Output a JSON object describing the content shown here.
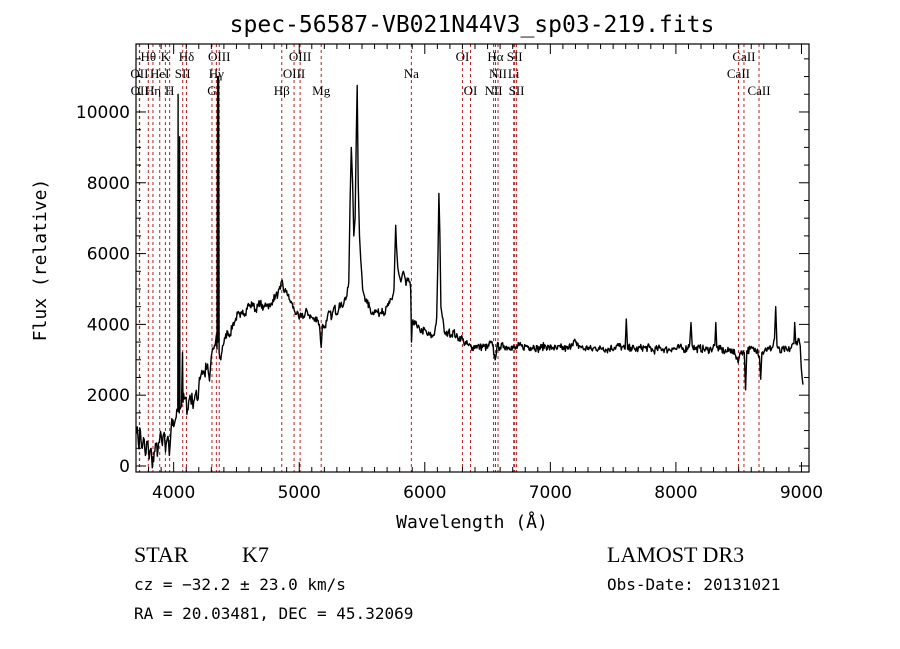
{
  "chart_data": {
    "type": "line",
    "title": "spec-56587-VB021N44V3_sp03-219.fits",
    "xlabel": "Wavelength (Å)",
    "ylabel": "Flux (relative)",
    "xlim": [
      3700,
      9060
    ],
    "ylim": [
      -170,
      11920
    ],
    "xticks": [
      4000,
      5000,
      6000,
      7000,
      8000,
      9000
    ],
    "yticks": [
      0,
      2000,
      4000,
      6000,
      8000,
      10000
    ],
    "xminor_step": 100,
    "yminor_step": 500,
    "line_color": "#000000",
    "marker_color": "#b22222",
    "spectral_lines": [
      {
        "label": "Hθ",
        "wavelength": 3798,
        "tier": 1
      },
      {
        "label": "K",
        "wavelength": 3934,
        "tier": 1
      },
      {
        "label": "Hδ",
        "wavelength": 4102,
        "tier": 1
      },
      {
        "label": "OIII",
        "wavelength": 4363,
        "tier": 1
      },
      {
        "label": "OIII",
        "wavelength": 5007,
        "tier": 1
      },
      {
        "label": "OI",
        "wavelength": 6300,
        "tier": 1
      },
      {
        "label": "Hα",
        "wavelength": 6563,
        "tier": 1
      },
      {
        "label": "SII",
        "wavelength": 6716,
        "tier": 1
      },
      {
        "label": "CaII",
        "wavelength": 8542,
        "tier": 1
      },
      {
        "label": "OII",
        "wavelength": 3727,
        "tier": 2
      },
      {
        "label": "HeI",
        "wavelength": 3889,
        "tier": 2
      },
      {
        "label": "SII",
        "wavelength": 4072,
        "tier": 2
      },
      {
        "label": "Hγ",
        "wavelength": 4340,
        "tier": 2
      },
      {
        "label": "OIII",
        "wavelength": 4959,
        "tier": 2
      },
      {
        "label": "Na",
        "wavelength": 5893,
        "tier": 2
      },
      {
        "label": "NII",
        "wavelength": 6583,
        "tier": 2
      },
      {
        "label": "Li",
        "wavelength": 6708,
        "tier": 2
      },
      {
        "label": "CaII",
        "wavelength": 8498,
        "tier": 2
      },
      {
        "label": "OII",
        "wavelength": 3729,
        "tier": 3
      },
      {
        "label": "Hη",
        "wavelength": 3835,
        "tier": 3
      },
      {
        "label": "H",
        "wavelength": 3968,
        "tier": 3
      },
      {
        "label": "G",
        "wavelength": 4305,
        "tier": 3
      },
      {
        "label": "Hβ",
        "wavelength": 4861,
        "tier": 3
      },
      {
        "label": "Mg",
        "wavelength": 5175,
        "tier": 3
      },
      {
        "label": "OI",
        "wavelength": 6364,
        "tier": 3
      },
      {
        "label": "NII",
        "wavelength": 6548,
        "tier": 3
      },
      {
        "label": "SII",
        "wavelength": 6731,
        "tier": 3
      },
      {
        "label": "CaII",
        "wavelength": 8662,
        "tier": 3
      }
    ],
    "series": [
      {
        "name": "spectrum",
        "points": [
          [
            3700,
            900
          ],
          [
            3710,
            1100
          ],
          [
            3720,
            600
          ],
          [
            3735,
            1000
          ],
          [
            3750,
            500
          ],
          [
            3760,
            800
          ],
          [
            3775,
            300
          ],
          [
            3790,
            700
          ],
          [
            3805,
            200
          ],
          [
            3820,
            500
          ],
          [
            3830,
            -50
          ],
          [
            3845,
            400
          ],
          [
            3860,
            600
          ],
          [
            3875,
            450
          ],
          [
            3890,
            800
          ],
          [
            3905,
            700
          ],
          [
            3920,
            900
          ],
          [
            3935,
            400
          ],
          [
            3950,
            800
          ],
          [
            3965,
            300
          ],
          [
            3980,
            1100
          ],
          [
            3995,
            1300
          ],
          [
            4010,
            1250
          ],
          [
            4025,
            1600
          ],
          [
            4033,
            1550
          ],
          [
            4035,
            10500
          ],
          [
            4037,
            1600
          ],
          [
            4045,
            1500
          ],
          [
            4047,
            9300
          ],
          [
            4050,
            1600
          ],
          [
            4062,
            1700
          ],
          [
            4070,
            3200
          ],
          [
            4074,
            1800
          ],
          [
            4090,
            1900
          ],
          [
            4110,
            1600
          ],
          [
            4130,
            2000
          ],
          [
            4150,
            1800
          ],
          [
            4170,
            2000
          ],
          [
            4190,
            1850
          ],
          [
            4205,
            2500
          ],
          [
            4225,
            2700
          ],
          [
            4245,
            2600
          ],
          [
            4265,
            2800
          ],
          [
            4285,
            2400
          ],
          [
            4300,
            3100
          ],
          [
            4315,
            3300
          ],
          [
            4330,
            3400
          ],
          [
            4340,
            3700
          ],
          [
            4345,
            3300
          ],
          [
            4350,
            11000
          ],
          [
            4353,
            3500
          ],
          [
            4358,
            11000
          ],
          [
            4362,
            3200
          ],
          [
            4375,
            3000
          ],
          [
            4390,
            3400
          ],
          [
            4410,
            3600
          ],
          [
            4430,
            3800
          ],
          [
            4450,
            3700
          ],
          [
            4470,
            4000
          ],
          [
            4490,
            4100
          ],
          [
            4510,
            4300
          ],
          [
            4530,
            4200
          ],
          [
            4550,
            4400
          ],
          [
            4570,
            4300
          ],
          [
            4590,
            4550
          ],
          [
            4610,
            4500
          ],
          [
            4630,
            4600
          ],
          [
            4650,
            4400
          ],
          [
            4670,
            4500
          ],
          [
            4690,
            4650
          ],
          [
            4710,
            4400
          ],
          [
            4730,
            4600
          ],
          [
            4750,
            4550
          ],
          [
            4770,
            4500
          ],
          [
            4790,
            4700
          ],
          [
            4810,
            4800
          ],
          [
            4830,
            4850
          ],
          [
            4850,
            5000
          ],
          [
            4865,
            5250
          ],
          [
            4880,
            4900
          ],
          [
            4900,
            4950
          ],
          [
            4920,
            4700
          ],
          [
            4940,
            4600
          ],
          [
            4960,
            4400
          ],
          [
            4980,
            4300
          ],
          [
            5000,
            4150
          ],
          [
            5020,
            4300
          ],
          [
            5040,
            4200
          ],
          [
            5060,
            4400
          ],
          [
            5080,
            4250
          ],
          [
            5100,
            4200
          ],
          [
            5120,
            4100
          ],
          [
            5140,
            4200
          ],
          [
            5160,
            4000
          ],
          [
            5175,
            3350
          ],
          [
            5185,
            4000
          ],
          [
            5200,
            3900
          ],
          [
            5220,
            4100
          ],
          [
            5240,
            4350
          ],
          [
            5260,
            4200
          ],
          [
            5280,
            4500
          ],
          [
            5300,
            4300
          ],
          [
            5320,
            4600
          ],
          [
            5340,
            4500
          ],
          [
            5360,
            4700
          ],
          [
            5380,
            4800
          ],
          [
            5395,
            5200
          ],
          [
            5405,
            7500
          ],
          [
            5415,
            9000
          ],
          [
            5425,
            8000
          ],
          [
            5435,
            6500
          ],
          [
            5445,
            7000
          ],
          [
            5455,
            9500
          ],
          [
            5462,
            10750
          ],
          [
            5470,
            8000
          ],
          [
            5480,
            6500
          ],
          [
            5490,
            5800
          ],
          [
            5505,
            5000
          ],
          [
            5520,
            4800
          ],
          [
            5540,
            4600
          ],
          [
            5560,
            4500
          ],
          [
            5580,
            4300
          ],
          [
            5600,
            4400
          ],
          [
            5620,
            4350
          ],
          [
            5640,
            4300
          ],
          [
            5660,
            4450
          ],
          [
            5680,
            4300
          ],
          [
            5700,
            4500
          ],
          [
            5720,
            4600
          ],
          [
            5740,
            4700
          ],
          [
            5755,
            5000
          ],
          [
            5768,
            6800
          ],
          [
            5775,
            6200
          ],
          [
            5785,
            5600
          ],
          [
            5795,
            5400
          ],
          [
            5810,
            5200
          ],
          [
            5830,
            5500
          ],
          [
            5850,
            5100
          ],
          [
            5870,
            5300
          ],
          [
            5888,
            5000
          ],
          [
            5894,
            3500
          ],
          [
            5900,
            4000
          ],
          [
            5920,
            4100
          ],
          [
            5940,
            3900
          ],
          [
            5960,
            3850
          ],
          [
            5980,
            3800
          ],
          [
            6000,
            3850
          ],
          [
            6020,
            3700
          ],
          [
            6040,
            3700
          ],
          [
            6060,
            3650
          ],
          [
            6080,
            3800
          ],
          [
            6095,
            4200
          ],
          [
            6105,
            6000
          ],
          [
            6112,
            7700
          ],
          [
            6120,
            6500
          ],
          [
            6128,
            4500
          ],
          [
            6140,
            4200
          ],
          [
            6155,
            3800
          ],
          [
            6170,
            3700
          ],
          [
            6190,
            3800
          ],
          [
            6210,
            3700
          ],
          [
            6230,
            3800
          ],
          [
            6250,
            3650
          ],
          [
            6270,
            3600
          ],
          [
            6290,
            3650
          ],
          [
            6310,
            3500
          ],
          [
            6330,
            3450
          ],
          [
            6350,
            3400
          ],
          [
            6380,
            3350
          ],
          [
            6410,
            3400
          ],
          [
            6440,
            3350
          ],
          [
            6470,
            3380
          ],
          [
            6500,
            3330
          ],
          [
            6520,
            3480
          ],
          [
            6540,
            3400
          ],
          [
            6560,
            3000
          ],
          [
            6575,
            3400
          ],
          [
            6600,
            3350
          ],
          [
            6630,
            3400
          ],
          [
            6660,
            3350
          ],
          [
            6690,
            3380
          ],
          [
            6720,
            3300
          ],
          [
            6750,
            3400
          ],
          [
            6780,
            3350
          ],
          [
            6810,
            3400
          ],
          [
            6840,
            3350
          ],
          [
            6870,
            3380
          ],
          [
            6900,
            3300
          ],
          [
            6930,
            3350
          ],
          [
            6960,
            3400
          ],
          [
            6990,
            3330
          ],
          [
            7020,
            3350
          ],
          [
            7050,
            3300
          ],
          [
            7080,
            3350
          ],
          [
            7110,
            3320
          ],
          [
            7140,
            3300
          ],
          [
            7170,
            3450
          ],
          [
            7190,
            3550
          ],
          [
            7210,
            3400
          ],
          [
            7240,
            3380
          ],
          [
            7270,
            3300
          ],
          [
            7300,
            3350
          ],
          [
            7330,
            3280
          ],
          [
            7360,
            3350
          ],
          [
            7390,
            3300
          ],
          [
            7420,
            3350
          ],
          [
            7450,
            3280
          ],
          [
            7480,
            3330
          ],
          [
            7510,
            3350
          ],
          [
            7540,
            3400
          ],
          [
            7570,
            3350
          ],
          [
            7595,
            3300
          ],
          [
            7605,
            4150
          ],
          [
            7615,
            3300
          ],
          [
            7640,
            3350
          ],
          [
            7670,
            3300
          ],
          [
            7700,
            3300
          ],
          [
            7730,
            3350
          ],
          [
            7760,
            3330
          ],
          [
            7790,
            3350
          ],
          [
            7820,
            3250
          ],
          [
            7850,
            3300
          ],
          [
            7880,
            3330
          ],
          [
            7910,
            3300
          ],
          [
            7940,
            3280
          ],
          [
            7970,
            3330
          ],
          [
            8000,
            3300
          ],
          [
            8030,
            3350
          ],
          [
            8060,
            3300
          ],
          [
            8090,
            3330
          ],
          [
            8110,
            3450
          ],
          [
            8120,
            4050
          ],
          [
            8130,
            3400
          ],
          [
            8160,
            3300
          ],
          [
            8190,
            3330
          ],
          [
            8220,
            3300
          ],
          [
            8250,
            3280
          ],
          [
            8280,
            3300
          ],
          [
            8310,
            3400
          ],
          [
            8318,
            4050
          ],
          [
            8326,
            3350
          ],
          [
            8350,
            3300
          ],
          [
            8380,
            3250
          ],
          [
            8410,
            3230
          ],
          [
            8440,
            3300
          ],
          [
            8470,
            3150
          ],
          [
            8500,
            3000
          ],
          [
            8520,
            3250
          ],
          [
            8545,
            3200
          ],
          [
            8555,
            2150
          ],
          [
            8565,
            3250
          ],
          [
            8590,
            3300
          ],
          [
            8620,
            3280
          ],
          [
            8650,
            3300
          ],
          [
            8665,
            3100
          ],
          [
            8675,
            2450
          ],
          [
            8685,
            3200
          ],
          [
            8710,
            3300
          ],
          [
            8740,
            3300
          ],
          [
            8770,
            3350
          ],
          [
            8785,
            3600
          ],
          [
            8795,
            4500
          ],
          [
            8805,
            3400
          ],
          [
            8830,
            3200
          ],
          [
            8860,
            3300
          ],
          [
            8890,
            3250
          ],
          [
            8920,
            3350
          ],
          [
            8940,
            3450
          ],
          [
            8946,
            4050
          ],
          [
            8955,
            3450
          ],
          [
            8975,
            3600
          ],
          [
            8990,
            3400
          ],
          [
            8998,
            2800
          ],
          [
            9005,
            2500
          ],
          [
            9012,
            2300
          ]
        ]
      }
    ]
  },
  "info": {
    "object_class": "STAR",
    "subclass": "K7",
    "survey": "LAMOST DR3",
    "cz": "cz = −32.2 ± 23.0 km/s",
    "obs_date": "Obs-Date: 20131021",
    "coords": "RA =  20.03481, DEC =  45.32069"
  }
}
